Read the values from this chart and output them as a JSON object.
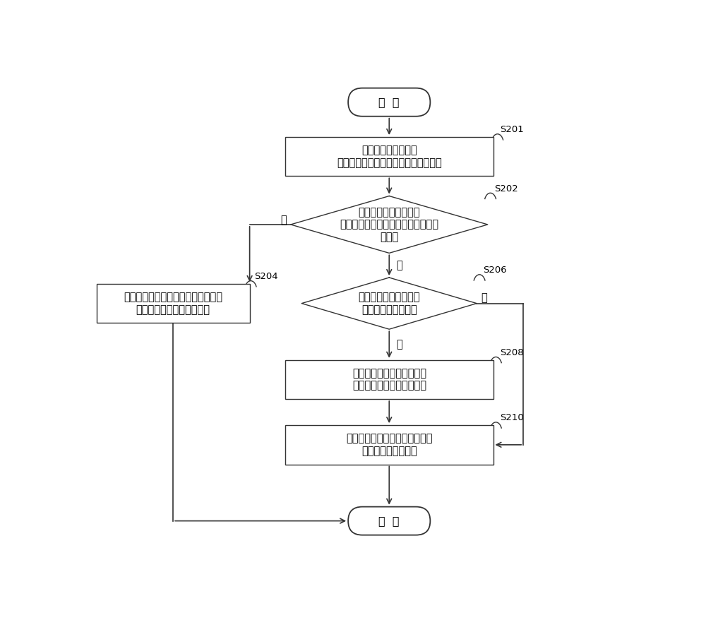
{
  "bg_color": "#ffffff",
  "line_color": "#333333",
  "text_color": "#000000",
  "font_size": 10.5,
  "start_text": "开  始",
  "end_text": "结  束",
  "s201_text": "在制冷设备开启时，\n对压缩机的本次运行时长进行实时记录",
  "s202_text": "在压缩机运行结束时，\n判断本次运行时长是否大于第一预设\n时长；",
  "s204_text": "控制制冷设备的压缩机在下次开启时\n启用高负荷压缩工况的转向",
  "s206_text": "判断的本次运行时长是\n否小于第二预设时长",
  "s208_text": "控制压缩机在下次开启时，\n启用低负荷压缩工况的转向",
  "s210_text": "控制压缩机在下次开启时保持与\n本次转向相同的转向",
  "yes_label": "是",
  "no_label": "否",
  "labels": [
    "S201",
    "S202",
    "S204",
    "S206",
    "S208",
    "S210"
  ]
}
